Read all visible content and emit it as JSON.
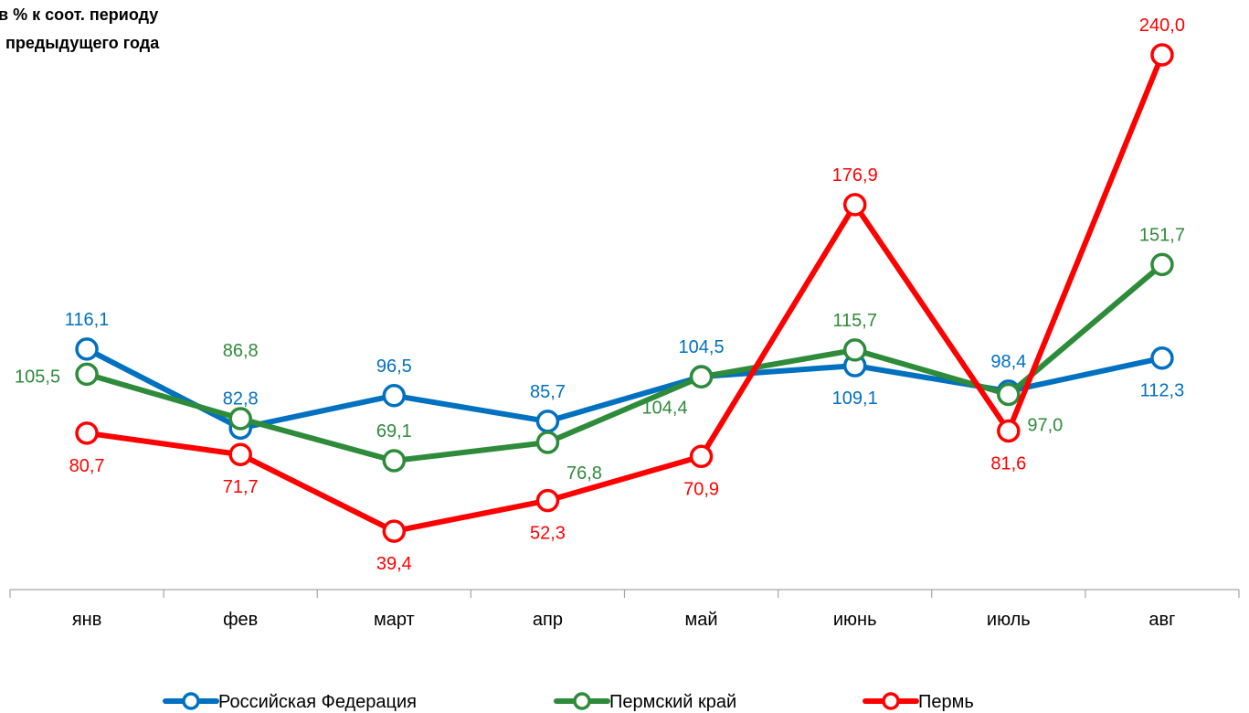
{
  "chart_data": {
    "type": "line",
    "title_lines": [
      "в % к соот. периоду",
      "предыдущего года"
    ],
    "categories": [
      "янв",
      "фев",
      "март",
      "апр",
      "май",
      "июнь",
      "июль",
      "авг"
    ],
    "series": [
      {
        "name": "Российская Федерация",
        "color": "#0070C0",
        "values": [
          116.1,
          82.8,
          96.5,
          85.7,
          104.5,
          109.1,
          98.4,
          112.3
        ],
        "labels": [
          "116,1",
          "82,8",
          "96,5",
          "85,7",
          "104,5",
          "109,1",
          "98,4",
          "112,3"
        ],
        "label_pos": [
          "above",
          "above",
          "above",
          "above",
          "above",
          "below",
          "above",
          "below"
        ]
      },
      {
        "name": "Пермский край",
        "color": "#2E8B3A",
        "values": [
          105.5,
          86.8,
          69.1,
          76.8,
          104.4,
          115.7,
          97.0,
          151.7
        ],
        "labels": [
          "105,5",
          "86,8",
          "69,1",
          "76,8",
          "104,4",
          "115,7",
          "97,0",
          "151,7"
        ],
        "label_pos": [
          "left",
          "above-far",
          "above",
          "below-right",
          "below-left",
          "above",
          "below-right",
          "above"
        ]
      },
      {
        "name": "Пермь",
        "color": "#FF0000",
        "values": [
          80.7,
          71.7,
          39.4,
          52.3,
          70.9,
          176.9,
          81.6,
          240.0
        ],
        "labels": [
          "80,7",
          "71,7",
          "39,4",
          "52,3",
          "70,9",
          "176,9",
          "81,6",
          "240,0"
        ],
        "label_pos": [
          "below",
          "below",
          "below",
          "below",
          "below",
          "above",
          "below",
          "above"
        ]
      }
    ],
    "legend_position": "bottom",
    "grid": false
  }
}
